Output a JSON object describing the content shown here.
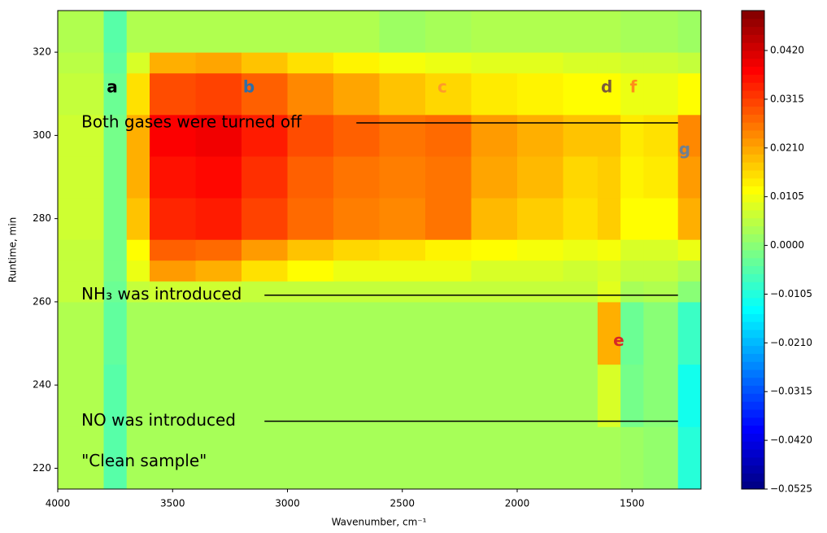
{
  "chart_data": {
    "type": "heatmap",
    "xlabel": "Wavenumber, cm⁻¹",
    "ylabel": "Runtime, min",
    "xlim": [
      4000,
      1200
    ],
    "ylim": [
      215,
      330
    ],
    "xticks": [
      4000,
      3500,
      3000,
      2500,
      2000,
      1500
    ],
    "yticks": [
      220,
      240,
      260,
      280,
      300,
      320
    ],
    "colormap": "jet",
    "clim": [
      -0.0525,
      0.0506
    ],
    "cticks": [
      {
        "value": 0.042,
        "label": "0.0420"
      },
      {
        "value": 0.0315,
        "label": "0.0315"
      },
      {
        "value": 0.021,
        "label": "0.0210"
      },
      {
        "value": 0.0105,
        "label": "0.0105"
      },
      {
        "value": 0,
        "label": "0.0000"
      },
      {
        "value": -0.0105,
        "label": "−0.0105"
      },
      {
        "value": -0.021,
        "label": "−0.0210"
      },
      {
        "value": -0.0315,
        "label": "−0.0315"
      },
      {
        "value": -0.042,
        "label": "−0.0420"
      },
      {
        "value": -0.0525,
        "label": "−0.0525"
      }
    ],
    "x_edges": [
      4000,
      3800,
      3700,
      3600,
      3400,
      3200,
      3000,
      2800,
      2600,
      2400,
      2200,
      2000,
      1800,
      1650,
      1550,
      1450,
      1300,
      1200
    ],
    "y_edges": [
      215,
      230,
      245,
      260,
      265,
      270,
      275,
      285,
      295,
      305,
      315,
      320,
      330
    ],
    "z": [
      [
        0.004,
        -0.005,
        0.003,
        0.003,
        0.003,
        0.003,
        0.003,
        0.003,
        0.003,
        0.003,
        0.003,
        0.003,
        0.003,
        0.003,
        0.002,
        0.001,
        -0.01
      ],
      [
        0.004,
        -0.005,
        0.003,
        0.003,
        0.003,
        0.003,
        0.003,
        0.003,
        0.003,
        0.003,
        0.003,
        0.003,
        0.003,
        0.008,
        -0.002,
        0.0,
        -0.012
      ],
      [
        0.004,
        -0.004,
        0.003,
        0.003,
        0.003,
        0.003,
        0.003,
        0.003,
        0.003,
        0.003,
        0.003,
        0.003,
        0.003,
        0.02,
        -0.003,
        0.0,
        -0.008
      ],
      [
        0.006,
        -0.003,
        0.006,
        0.007,
        0.007,
        0.006,
        0.006,
        0.006,
        0.006,
        0.006,
        0.006,
        0.006,
        0.006,
        0.009,
        0.003,
        0.004,
        0.0
      ],
      [
        0.006,
        -0.002,
        0.01,
        0.022,
        0.02,
        0.015,
        0.012,
        0.01,
        0.01,
        0.01,
        0.008,
        0.008,
        0.007,
        0.008,
        0.006,
        0.006,
        0.004
      ],
      [
        0.006,
        -0.002,
        0.012,
        0.028,
        0.027,
        0.022,
        0.018,
        0.016,
        0.015,
        0.013,
        0.012,
        0.011,
        0.01,
        0.011,
        0.008,
        0.008,
        0.01
      ],
      [
        0.007,
        -0.002,
        0.018,
        0.034,
        0.035,
        0.031,
        0.027,
        0.025,
        0.024,
        0.026,
        0.019,
        0.017,
        0.015,
        0.017,
        0.012,
        0.012,
        0.02
      ],
      [
        0.007,
        -0.002,
        0.02,
        0.036,
        0.037,
        0.033,
        0.028,
        0.026,
        0.025,
        0.026,
        0.021,
        0.019,
        0.016,
        0.017,
        0.013,
        0.014,
        0.022
      ],
      [
        0.007,
        -0.002,
        0.02,
        0.038,
        0.039,
        0.035,
        0.03,
        0.028,
        0.026,
        0.027,
        0.022,
        0.02,
        0.018,
        0.018,
        0.014,
        0.015,
        0.024
      ],
      [
        0.006,
        -0.003,
        0.015,
        0.03,
        0.031,
        0.028,
        0.024,
        0.021,
        0.018,
        0.016,
        0.014,
        0.013,
        0.012,
        0.012,
        0.01,
        0.01,
        0.012
      ],
      [
        0.005,
        -0.004,
        0.008,
        0.02,
        0.021,
        0.018,
        0.015,
        0.013,
        0.011,
        0.01,
        0.009,
        0.009,
        0.008,
        0.008,
        0.007,
        0.007,
        0.006
      ],
      [
        0.004,
        -0.005,
        0.004,
        0.004,
        0.004,
        0.004,
        0.004,
        0.004,
        0.002,
        0.003,
        0.004,
        0.004,
        0.004,
        0.004,
        0.003,
        0.003,
        0.002
      ]
    ],
    "annotations": [
      {
        "text": "a",
        "x": 3763,
        "y": 311.4,
        "color": "#000000",
        "bold": true
      },
      {
        "text": "b",
        "x": 3168,
        "y": 311.4,
        "color": "#2f6ea6",
        "bold": true
      },
      {
        "text": "c",
        "x": 2326,
        "y": 311.4,
        "color": "#ff9a2a",
        "bold": true
      },
      {
        "text": "d",
        "x": 1610,
        "y": 311.4,
        "color": "#7b5a3c",
        "bold": true
      },
      {
        "text": "f",
        "x": 1494,
        "y": 311.4,
        "color": "#ff8c1a",
        "bold": true
      },
      {
        "text": "e",
        "x": 1558,
        "y": 250.5,
        "color": "#d62728",
        "bold": true
      },
      {
        "text": "g",
        "x": 1271,
        "y": 296.5,
        "color": "#708090",
        "bold": true
      },
      {
        "text": "Both gases were turned off",
        "x": 3897,
        "y": 303,
        "color": "#000000",
        "line_x": [
          2700,
          1300
        ]
      },
      {
        "text": "NH₃ was introduced",
        "x": 3897,
        "y": 261.6,
        "color": "#000000",
        "line_x": [
          3100,
          1300
        ]
      },
      {
        "text": "NO was introduced",
        "x": 3897,
        "y": 231.3,
        "color": "#000000",
        "line_x": [
          3100,
          1300
        ]
      },
      {
        "text": "\"Clean sample\"",
        "x": 3897,
        "y": 221.6,
        "color": "#000000"
      }
    ]
  }
}
